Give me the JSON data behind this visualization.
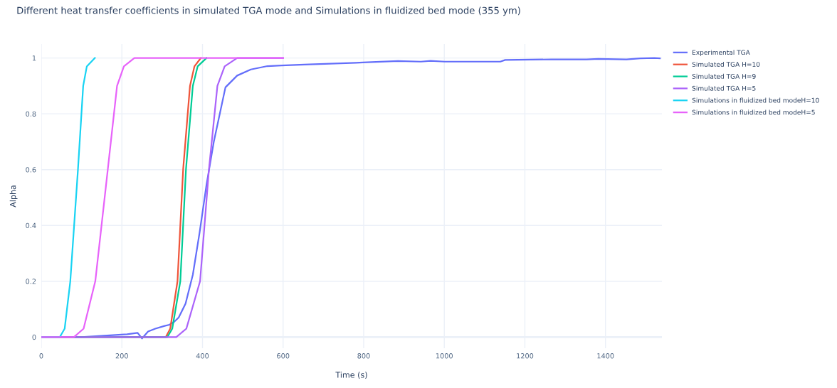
{
  "chart_data": {
    "type": "line",
    "title": "Different heat transfer coefficients in simulated TGA mode and Simulations in fluidized bed mode (355 ym)",
    "xlabel": "Time (s)",
    "ylabel": "Alpha",
    "xlim": [
      0,
      1540
    ],
    "ylim": [
      -0.04,
      1.05
    ],
    "xticks": [
      0,
      200,
      400,
      600,
      800,
      1000,
      1200,
      1400
    ],
    "yticks": [
      0,
      0.2,
      0.4,
      0.6,
      0.8,
      1
    ],
    "grid": true,
    "legend": "top right",
    "marker": "none",
    "line_style": "solid",
    "series": [
      {
        "name": "Experimental TGA",
        "color": "#636efa",
        "x": [
          0,
          100,
          213,
          239,
          250,
          265,
          283,
          306,
          318,
          330,
          341,
          358,
          376,
          393,
          410,
          428,
          457,
          486,
          520,
          561,
          596,
          665,
          781,
          798,
          885,
          942,
          966,
          1001,
          1139,
          1151,
          1266,
          1353,
          1382,
          1452,
          1486,
          1521,
          1535
        ],
        "values": [
          0,
          0,
          0.01,
          0.015,
          -0.005,
          0.02,
          0.03,
          0.04,
          0.044,
          0.055,
          0.07,
          0.12,
          0.223,
          0.376,
          0.546,
          0.699,
          0.895,
          0.937,
          0.959,
          0.971,
          0.973,
          0.977,
          0.983,
          0.984,
          0.989,
          0.987,
          0.99,
          0.987,
          0.987,
          0.993,
          0.995,
          0.995,
          0.997,
          0.995,
          0.999,
          1.0,
          0.999
        ]
      },
      {
        "name": "Simulated TGA H=10",
        "color": "#ef553b",
        "x": [
          0,
          309,
          320,
          338,
          352,
          369,
          380,
          396
        ],
        "values": [
          0,
          0,
          0.03,
          0.2,
          0.6,
          0.9,
          0.97,
          1
        ]
      },
      {
        "name": "Simulated TGA H=9",
        "color": "#00cc96",
        "x": [
          0,
          313,
          325,
          345,
          359,
          376,
          388,
          410
        ],
        "values": [
          0,
          0,
          0.03,
          0.2,
          0.6,
          0.9,
          0.97,
          1
        ]
      },
      {
        "name": "Simulated TGA H=5",
        "color": "#ab63fa",
        "x": [
          0,
          335,
          360,
          394,
          416,
          437,
          455,
          486,
          600
        ],
        "values": [
          0,
          0,
          0.03,
          0.2,
          0.6,
          0.9,
          0.97,
          1,
          1
        ]
      },
      {
        "name": "Simulations in fluidized bed modeH=10",
        "color": "#19d3f3",
        "x": [
          0,
          46,
          58,
          72,
          91,
          104,
          113,
          133
        ],
        "values": [
          0,
          0,
          0.03,
          0.2,
          0.6,
          0.9,
          0.97,
          1
        ]
      },
      {
        "name": "Simulations in fluidized bed modeH=5",
        "color": "#e763fa",
        "x": [
          0,
          81,
          105,
          134,
          165,
          188,
          205,
          231,
          600
        ],
        "values": [
          0,
          0,
          0.03,
          0.2,
          0.6,
          0.9,
          0.97,
          1,
          1
        ]
      }
    ]
  }
}
